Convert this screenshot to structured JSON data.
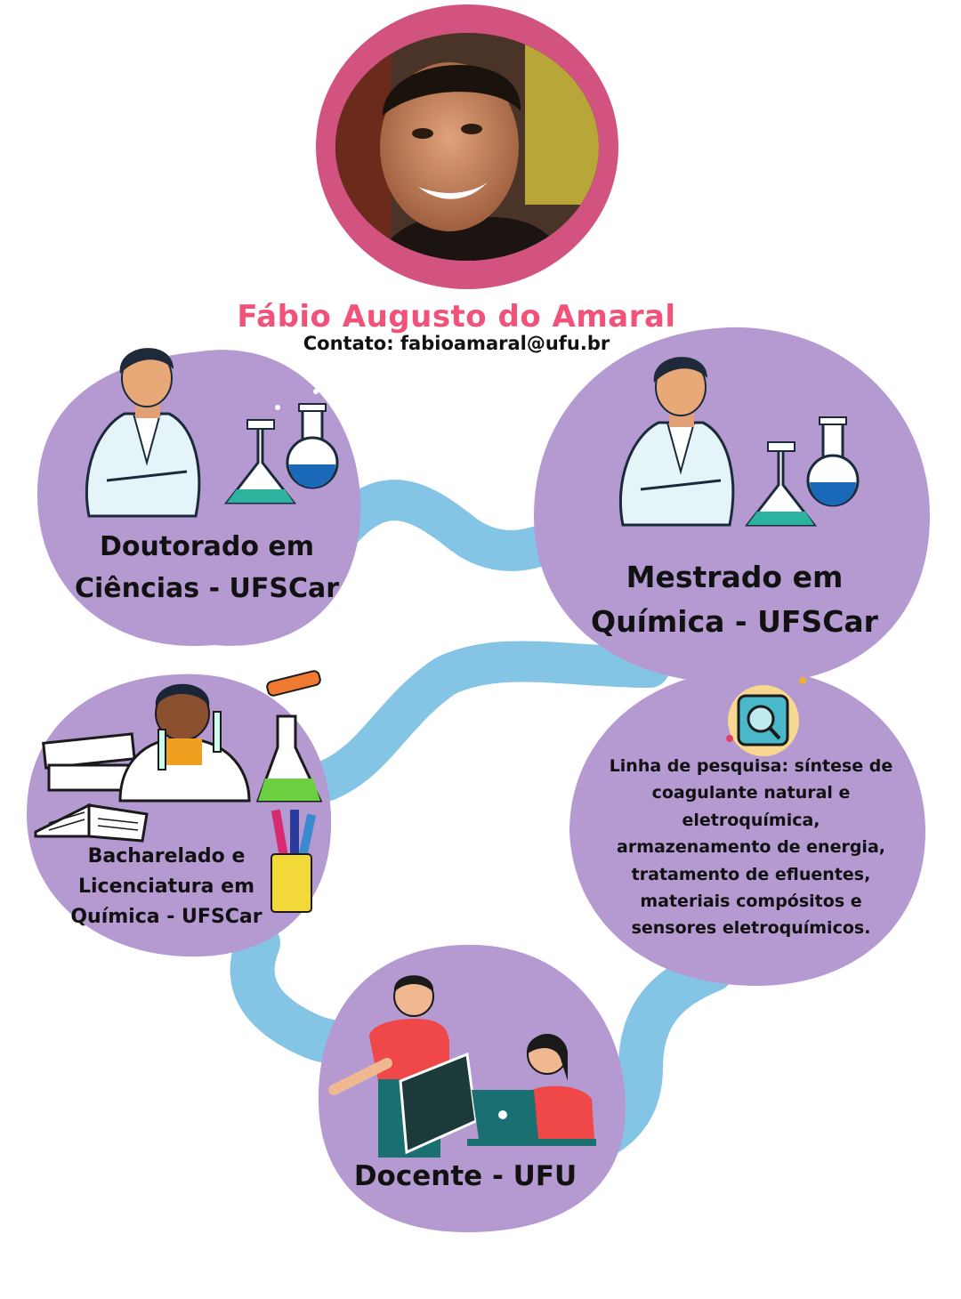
{
  "header": {
    "name": "Fábio Augusto do Amaral",
    "contact": "Contato: fabioamaral@ufu.br"
  },
  "bubbles": {
    "doutorado": {
      "lines": [
        "Doutorado em",
        "Ciências - UFSCar"
      ]
    },
    "mestrado": {
      "lines": [
        "Mestrado em",
        "Química - UFSCar"
      ]
    },
    "bacharelado": {
      "lines": [
        "Bacharelado e",
        "Licenciatura em",
        "Química - UFSCar"
      ]
    },
    "pesquisa": {
      "lines": [
        "Linha de pesquisa:  síntese de",
        "coagulante natural e",
        "eletroquímica,",
        "armazenamento de energia,",
        "tratamento de efluentes,",
        "materiais compósitos e",
        "sensores eletroquímicos."
      ]
    },
    "docente": {
      "lines": [
        "Docente - UFU"
      ]
    }
  },
  "icons": {
    "portrait": "portrait-photo",
    "scientist": "scientist-icon",
    "flasks": "lab-flasks-icon",
    "books": "books-icon",
    "kid_scientist": "kid-scientist-icon",
    "pencil_cup": "pencil-cup-icon",
    "magnifier": "magnifier-icon",
    "teacher": "teacher-icon",
    "student_laptop": "student-laptop-icon"
  },
  "colors": {
    "bubble": "#b59ad2",
    "river": "#84c5e6",
    "frame": "#d2537f",
    "name": "#f0527a"
  }
}
